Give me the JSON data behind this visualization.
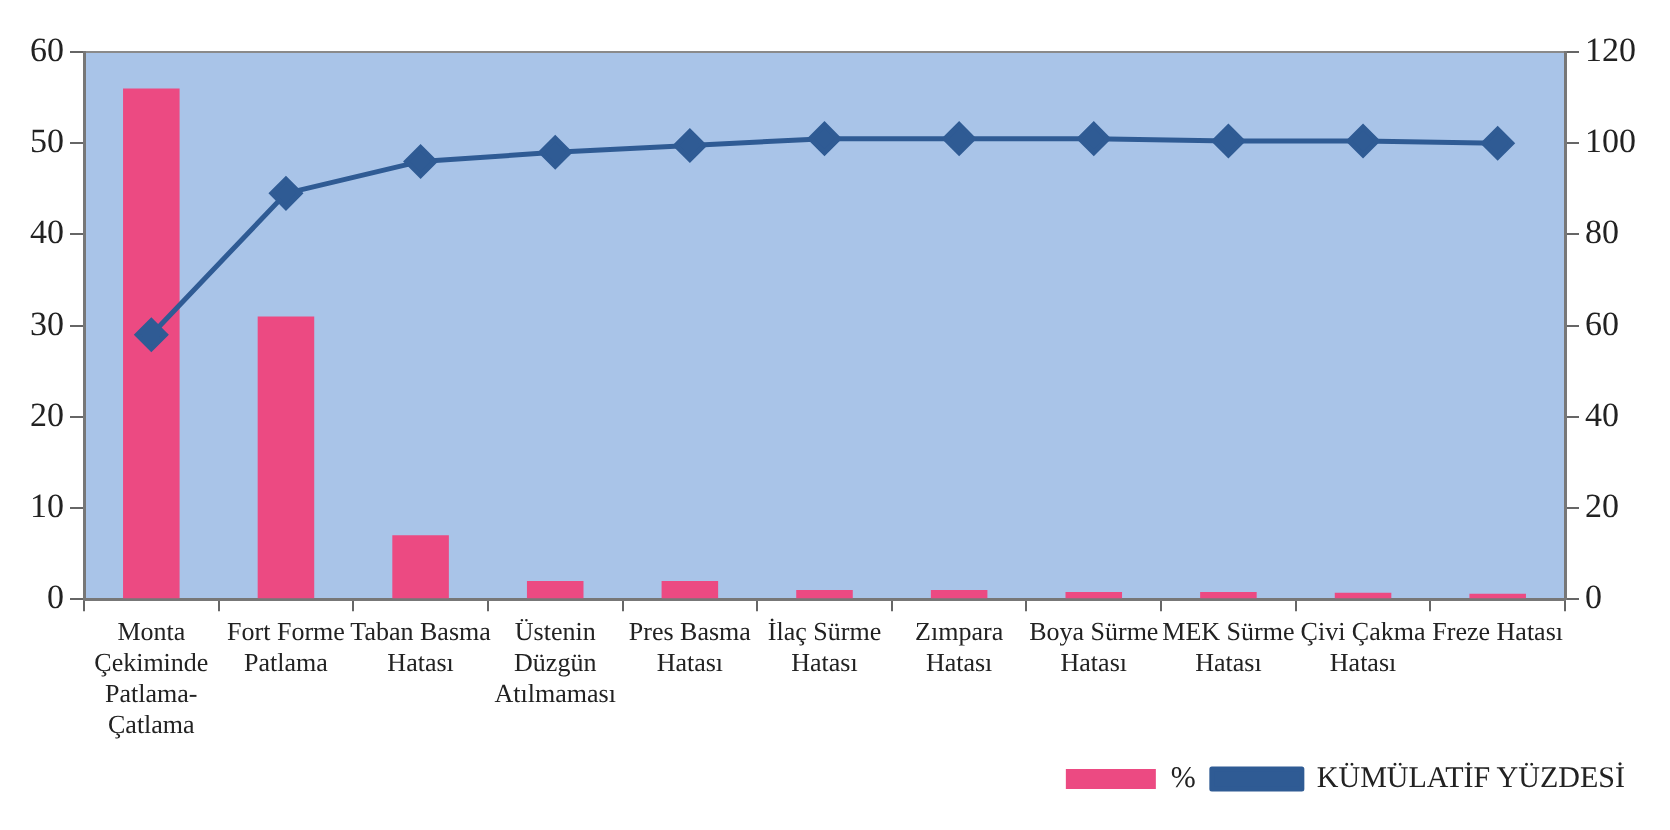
{
  "chart_data": {
    "type": "bar",
    "categories": [
      "Monta Çekiminde Patlama-Çatlama",
      "Fort Forme Patlama",
      "Taban Basma Hatası",
      "Üstenin Düzgün Atılmaması",
      "Pres Basma Hatası",
      "İlaç Sürme Hatası",
      "Zımpara Hatası",
      "Boya Sürme Hatası",
      "MEK Sürme Hatası",
      "Çivi Çakma Hatası",
      "Freze Hatası"
    ],
    "series": [
      {
        "name": "%",
        "color": "#ec4a82",
        "values": [
          56,
          31,
          7,
          2,
          2,
          1,
          1,
          0.8,
          0.8,
          0.7,
          0.6
        ]
      },
      {
        "name": "KÜMÜLATİF YÜZDESİ",
        "type": "line",
        "axis": "y2",
        "color": "#2f5b94",
        "marker": "diamond",
        "values": [
          58,
          89,
          96,
          98,
          99.5,
          101,
          101,
          101,
          100.5,
          100.5,
          100
        ]
      }
    ],
    "ylim": [
      0,
      60
    ],
    "yticks": [
      0,
      10,
      20,
      30,
      40,
      50,
      60
    ],
    "y2lim": [
      0,
      120
    ],
    "y2ticks": [
      0,
      20,
      40,
      60,
      80,
      100,
      120
    ],
    "grid": false,
    "legend": "bottom right"
  }
}
